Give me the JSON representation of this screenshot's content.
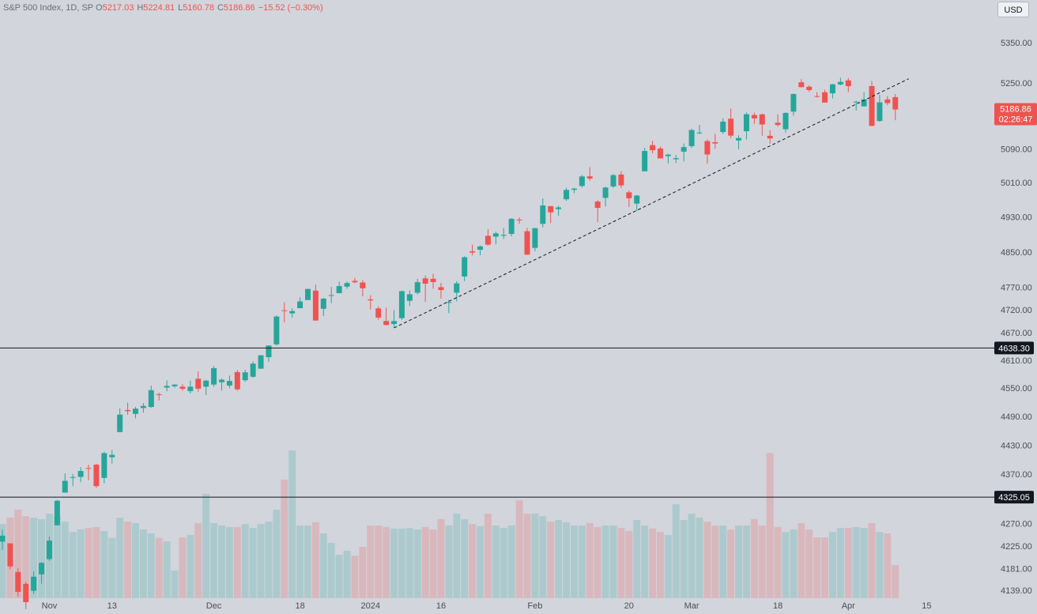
{
  "chart_data": {
    "type": "candlestick",
    "log_scale": true,
    "currency": "USD",
    "legend": {
      "symbol": "S&P 500 Index, 1D, SP",
      "fields": [
        {
          "key": "O",
          "value": 5217.03
        },
        {
          "key": "H",
          "value": 5224.81
        },
        {
          "key": "L",
          "value": 5160.78
        },
        {
          "key": "C",
          "value": 5186.86
        }
      ],
      "change": "−15.52 (−0.30%)"
    },
    "last_price": 5186.86,
    "countdown": "02:26:47",
    "up_color": "#26a69a",
    "down_color": "#ef5350",
    "ylim": [
      4125,
      5460
    ],
    "yticks": [
      {
        "value": 5350,
        "label": "5350.00"
      },
      {
        "value": 5250,
        "label": "5250.00"
      },
      {
        "value": 5090,
        "label": "5090.00"
      },
      {
        "value": 5010,
        "label": "5010.00"
      },
      {
        "value": 4930,
        "label": "4930.00"
      },
      {
        "value": 4850,
        "label": "4850.00"
      },
      {
        "value": 4770,
        "label": "4770.00"
      },
      {
        "value": 4720,
        "label": "4720.00"
      },
      {
        "value": 4670,
        "label": "4670.00"
      },
      {
        "value": 4610,
        "label": "4610.00"
      },
      {
        "value": 4550,
        "label": "4550.00"
      },
      {
        "value": 4490,
        "label": "4490.00"
      },
      {
        "value": 4430,
        "label": "4430.00"
      },
      {
        "value": 4370,
        "label": "4370.00"
      },
      {
        "value": 4270,
        "label": "4270.00"
      },
      {
        "value": 4225,
        "label": "4225.00"
      },
      {
        "value": 4181,
        "label": "4181.00"
      },
      {
        "value": 4139,
        "label": "4139.00"
      }
    ],
    "hlines": [
      {
        "value": 4638.3,
        "label": "4638.30"
      },
      {
        "value": 4325.05,
        "label": "4325.05"
      }
    ],
    "trendline": {
      "x": [
        50,
        115.7
      ],
      "y": [
        4682.1,
        5262
      ]
    },
    "categories": [
      null,
      null,
      null,
      null,
      null,
      null,
      "Nov",
      null,
      null,
      null,
      null,
      null,
      null,
      null,
      "13",
      null,
      null,
      null,
      null,
      null,
      null,
      null,
      null,
      null,
      null,
      null,
      null,
      "Dec",
      null,
      null,
      null,
      null,
      null,
      null,
      null,
      null,
      null,
      null,
      "18",
      null,
      null,
      null,
      null,
      null,
      null,
      null,
      null,
      "2024",
      null,
      null,
      null,
      null,
      null,
      null,
      null,
      null,
      "16",
      null,
      null,
      null,
      null,
      null,
      null,
      null,
      null,
      null,
      null,
      null,
      "Feb",
      null,
      null,
      null,
      null,
      null,
      null,
      null,
      null,
      null,
      null,
      null,
      "20",
      null,
      null,
      null,
      null,
      null,
      null,
      null,
      "Mar",
      null,
      null,
      null,
      null,
      null,
      null,
      null,
      null,
      null,
      null,
      "18",
      null,
      null,
      null,
      null,
      null,
      null,
      null,
      null,
      "Apr",
      null,
      null,
      null,
      null,
      null,
      null,
      null,
      null,
      null,
      "15"
    ],
    "open": [
      4235.8,
      4232.4,
      4176.0,
      4152.9,
      4139.4,
      4171.3,
      4201.3,
      4268.3,
      4334.2,
      4364.3,
      4366.2,
      4384.4,
      4391.4,
      4364.2,
      4406.7,
      4459.0,
      4505.3,
      4497.1,
      4509.6,
      4511.7,
      4538.8,
      4553.0,
      4555.8,
      4554.9,
      4545.6,
      4571.8,
      4554.9,
      4559.4,
      4564.4,
      4557.3,
      4586.2,
      4568.8,
      4576.2,
      4593.4,
      4618.3,
      4646.2,
      4721.0,
      4714.2,
      4725.6,
      4743.7,
      4764.7,
      4724.3,
      4753.9,
      4758.9,
      4773.5,
      4786.4,
      4782.9,
      4745.2,
      4725.1,
      4697.4,
      4690.6,
      4703.7,
      4741.9,
      4759.9,
      4792.1,
      4791.2,
      4772.4,
      4739.1,
      4760.1,
      4796.3,
      4853.4,
      4856.8,
      4888.6,
      4886.7,
      4888.9,
      4893.0,
      4925.9,
      4899.2,
      4861.1,
      4916.1,
      4957.2,
      4950.2,
      4973.1,
      4995.2,
      5004.2,
      5026.8,
      4967.9,
      4976.4,
      5003.1,
      5031.1,
      4989.3,
      4963.0,
      5038.8,
      5100.9,
      5093.0,
      5074.6,
      5067.2,
      5085.4,
      5098.5,
      5131.0,
      5110.5,
      5108.0,
      5132.4,
      5164.5,
      5112.0,
      5134.3,
      5173.5,
      5175.1,
      5123.3,
      5154.8,
      5139.1,
      5181.7,
      5253.4,
      5242.5,
      5219.5,
      5228.9,
      5226.3,
      5248.0,
      5258.0,
      5204.3,
      5194.4,
      5244.1,
      5159.0,
      5211.4,
      5217.03,
      null,
      null,
      null,
      null
    ],
    "high": [
      4259.4,
      4232.4,
      4183.6,
      4156.7,
      4177.5,
      4195.6,
      4245.6,
      4319.7,
      4373.6,
      4372.2,
      4386.3,
      4391.2,
      4393.4,
      4418.0,
      4421.8,
      4508.7,
      4521.2,
      4512.0,
      4520.1,
      4557.1,
      4542.1,
      4568.4,
      4560.3,
      4560.5,
      4568.1,
      4587.6,
      4569.9,
      4599.4,
      4572.4,
      4578.6,
      4590.7,
      4590.9,
      4609.2,
      4623.0,
      4643.9,
      4709.7,
      4738.6,
      4725.5,
      4749.5,
      4768.7,
      4778.0,
      4748.7,
      4772.9,
      4784.7,
      4785.4,
      4793.3,
      4788.4,
      4754.3,
      4729.3,
      4726.8,
      4721.5,
      4764.5,
      4765.5,
      4790.8,
      4798.5,
      4802.4,
      4782.3,
      4744.2,
      4785.8,
      4842.1,
      4868.4,
      4866.5,
      4903.7,
      4898.2,
      4906.7,
      4929.3,
      4931.1,
      4906.8,
      4907.0,
      4975.3,
      4957.2,
      4957.8,
      4999.9,
      5000.4,
      5030.1,
      5048.4,
      4971.3,
      5002.5,
      5032.7,
      5038.7,
      4993.7,
      4983.2,
      5094.4,
      5111.1,
      5097.7,
      5080.7,
      5077.4,
      5105.0,
      5140.3,
      5149.7,
      5114.6,
      5128.0,
      5165.6,
      5189.3,
      5124.7,
      5179.9,
      5179.1,
      5176.9,
      5136.9,
      5175.6,
      5180.3,
      5226.2,
      5261.1,
      5246.1,
      5229.1,
      5235.2,
      5249.3,
      5264.9,
      5264.0,
      5208.3,
      5228.8,
      5256.6,
      5222.2,
      5219.6,
      5224.81,
      null,
      null,
      null,
      null
    ],
    "low": [
      4219.4,
      4181.4,
      4127.9,
      4103.8,
      4132.9,
      4153.1,
      4197.7,
      4268.3,
      4334.2,
      4347.5,
      4355.4,
      4359.8,
      4343.9,
      4353.3,
      4393.8,
      4459.0,
      4495.3,
      4487.8,
      4499.7,
      4510.4,
      4525.5,
      4545.1,
      4552.8,
      4546.3,
      4540.5,
      4544.2,
      4537.2,
      4554.7,
      4546.7,
      4551.7,
      4546.5,
      4565.2,
      4574.1,
      4593.4,
      4608.1,
      4643.2,
      4694.4,
      4704.7,
      4725.6,
      4743.7,
      4697.8,
      4708.4,
      4736.8,
      4758.9,
      4768.9,
      4781.0,
      4752.0,
      4722.7,
      4699.7,
      4687.5,
      4682.1,
      4699.8,
      4730.4,
      4756.2,
      4739.6,
      4769.0,
      4747.1,
      4714.8,
      4740.6,
      4785.9,
      4844.1,
      4844.4,
      4865.9,
      4869.3,
      4881.5,
      4887.4,
      4916.3,
      4845.2,
      4853.5,
      4908.0,
      4918.1,
      4934.9,
      4969.1,
      4987.1,
      5000.3,
      5016.3,
      4920.3,
      4956.4,
      4999.4,
      4999.5,
      4955.0,
      4946.0,
      5038.8,
      5081.5,
      5068.9,
      5057.3,
      5058.4,
      5061.9,
      5094.2,
      5127.2,
      5056.8,
      5092.2,
      5128.2,
      5117.5,
      5091.1,
      5114.5,
      5151.9,
      5123.3,
      5104.4,
      5145.5,
      5131.6,
      5171.6,
      5240.7,
      5229.9,
      5216.1,
      5203.4,
      5213.9,
      5245.8,
      5229.2,
      5184.1,
      5194.4,
      5146.1,
      5157.2,
      5197.4,
      5160.78,
      null,
      null,
      null,
      null
    ],
    "close": [
      4247.7,
      4186.8,
      4137.2,
      4117.4,
      4166.8,
      4193.8,
      4237.9,
      4317.8,
      4358.3,
      4366.0,
      4378.4,
      4382.8,
      4347.4,
      4415.2,
      4411.6,
      4495.7,
      4502.9,
      4508.2,
      4514.0,
      4547.4,
      4538.2,
      4556.6,
      4559.3,
      4550.4,
      4554.9,
      4550.6,
      4567.8,
      4594.6,
      4569.8,
      4567.2,
      4549.3,
      4585.6,
      4604.4,
      4622.4,
      4643.7,
      4707.1,
      4719.6,
      4719.2,
      4740.6,
      4768.4,
      4698.4,
      4746.8,
      4754.6,
      4774.8,
      4781.6,
      4783.4,
      4769.8,
      4742.8,
      4704.8,
      4688.7,
      4697.2,
      4763.5,
      4756.5,
      4783.5,
      4780.2,
      4783.8,
      4766.0,
      4739.2,
      4780.9,
      4839.8,
      4850.4,
      4864.6,
      4868.6,
      4894.2,
      4891.0,
      4927.9,
      4925.0,
      4845.7,
      4906.2,
      4958.6,
      4942.8,
      4954.2,
      4995.1,
      4997.9,
      5026.6,
      5021.8,
      4953.2,
      5000.6,
      5029.7,
      5005.6,
      4975.5,
      4981.8,
      5087.0,
      5088.8,
      5069.5,
      5078.2,
      5069.8,
      5096.3,
      5137.1,
      5131.0,
      5078.7,
      5104.8,
      5157.4,
      5123.7,
      5117.9,
      5175.3,
      5165.3,
      5150.5,
      5117.1,
      5149.4,
      5178.5,
      5224.6,
      5241.5,
      5234.2,
      5218.2,
      5203.6,
      5248.5,
      5254.4,
      5243.8,
      5205.8,
      5211.5,
      5147.2,
      5204.3,
      5202.4,
      5186.86,
      null,
      null,
      null,
      null
    ],
    "volume": [
      2440,
      2650,
      2910,
      2700,
      2650,
      2600,
      2780,
      2700,
      2520,
      2180,
      2260,
      2310,
      2340,
      2210,
      1980,
      2650,
      2520,
      2470,
      2260,
      2130,
      1980,
      1870,
      910,
      2000,
      2080,
      2470,
      3430,
      2470,
      2390,
      2340,
      2340,
      2440,
      2310,
      2440,
      2520,
      2910,
      3900,
      4860,
      2390,
      2390,
      2500,
      2130,
      1820,
      1430,
      1560,
      1400,
      1690,
      2390,
      2390,
      2340,
      2290,
      2290,
      2310,
      2260,
      2340,
      2260,
      2600,
      2390,
      2780,
      2600,
      2440,
      2370,
      2780,
      2390,
      2310,
      2390,
      3220,
      2780,
      2780,
      2700,
      2520,
      2570,
      2500,
      2390,
      2390,
      2470,
      2340,
      2390,
      2390,
      2310,
      2210,
      2570,
      2390,
      2290,
      2180,
      2080,
      3090,
      2570,
      2780,
      2650,
      2520,
      2390,
      2390,
      2260,
      2390,
      2390,
      2600,
      2390,
      4780,
      2340,
      2180,
      2260,
      2470,
      2260,
      2000,
      2000,
      2180,
      2310,
      2310,
      2340,
      2310,
      2470,
      2180,
      2130,
      1090,
      null,
      null,
      null,
      null
    ]
  }
}
